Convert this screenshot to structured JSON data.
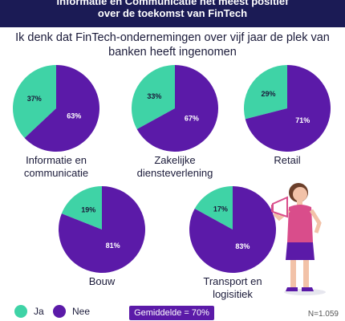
{
  "header": {
    "line1": "Informatie en Communicatie het meest positief",
    "line2": "over de toekomst van FinTech"
  },
  "question": {
    "line1": "Ik denk dat FinTech-ondernemingen over vijf jaar de plek van",
    "line2": "banken heeft ingenomen"
  },
  "colors": {
    "ja": "#3fd3a6",
    "nee": "#5b1aa8",
    "header_bg": "#1b1b55"
  },
  "chart_data": {
    "type": "pie",
    "slice_order": [
      "Ja",
      "Nee"
    ],
    "pies": [
      {
        "label_lines": [
          "Informatie en",
          "communicatie"
        ],
        "ja": 37,
        "nee": 63,
        "ja_label": "37%",
        "nee_label": "63%"
      },
      {
        "label_lines": [
          "Zakelijke",
          "diensteverlening"
        ],
        "ja": 33,
        "nee": 67,
        "ja_label": "33%",
        "nee_label": "67%"
      },
      {
        "label_lines": [
          "Retail"
        ],
        "ja": 29,
        "nee": 71,
        "ja_label": "29%",
        "nee_label": "71%"
      },
      {
        "label_lines": [
          "Bouw"
        ],
        "ja": 19,
        "nee": 81,
        "ja_label": "19%",
        "nee_label": "81%"
      },
      {
        "label_lines": [
          "Transport en",
          "logisitiek"
        ],
        "ja": 17,
        "nee": 83,
        "ja_label": "17%",
        "nee_label": "83%"
      }
    ],
    "legend": [
      {
        "name": "Ja",
        "color": "#3fd3a6"
      },
      {
        "name": "Nee",
        "color": "#5b1aa8"
      }
    ]
  },
  "average": {
    "label": "Gemiddelde = 70%"
  },
  "sample": {
    "label": "N=1.059"
  }
}
